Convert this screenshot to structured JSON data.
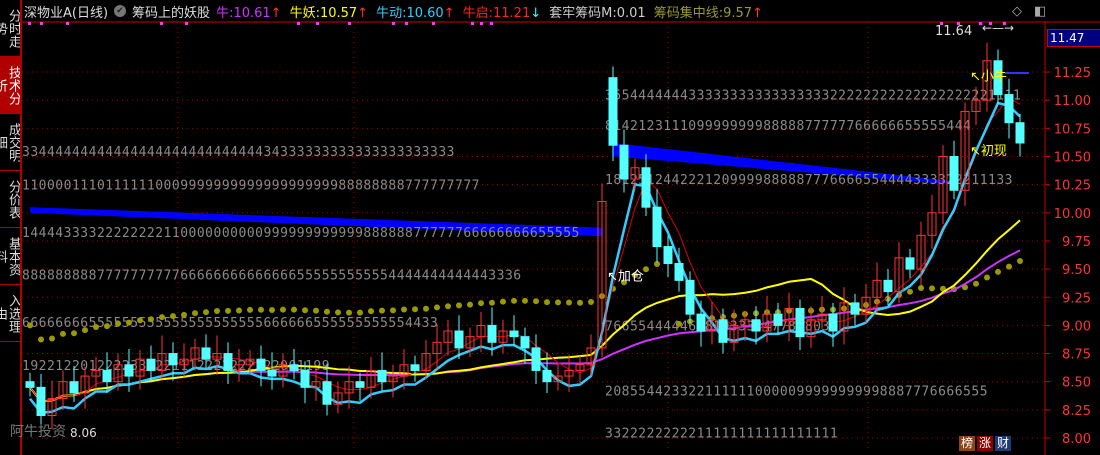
{
  "sidebar": {
    "tabs": [
      {
        "label": "分时走势",
        "active": false
      },
      {
        "label": "技术分析",
        "active": true
      },
      {
        "label": "成交明细",
        "active": false
      },
      {
        "label": "分价表",
        "active": false
      },
      {
        "label": "基本资料",
        "active": false
      },
      {
        "label": "入选理由",
        "active": false
      }
    ]
  },
  "header": {
    "title": "深物业A(日线)",
    "indicator": "筹码上的妖股",
    "items": [
      {
        "label": "牛: ",
        "value": "10.61",
        "arrow": "↑",
        "color": "#cc33ff",
        "arrow_color": "#ff3333"
      },
      {
        "label": "牛妖: ",
        "value": "10.57",
        "arrow": "↑",
        "color": "#ffff00",
        "arrow_color": "#ff3333"
      },
      {
        "label": "牛动: ",
        "value": "10.60",
        "arrow": "↑",
        "color": "#33ccff",
        "arrow_color": "#ff3333"
      },
      {
        "label": "牛启: ",
        "value": "11.21",
        "arrow": "↓",
        "color": "#ff2222",
        "arrow_color": "#33ffff"
      },
      {
        "label": "套牢筹码M: ",
        "value": "0.01",
        "arrow": "",
        "color": "#cccccc",
        "arrow_color": ""
      },
      {
        "label": "筹码集中线: ",
        "value": "9.57",
        "arrow": "↑",
        "color": "#999933",
        "arrow_color": "#ff3333"
      }
    ]
  },
  "top_icons": [
    "diamond-icon",
    "window-toggle-icon"
  ],
  "current_price": "11.47",
  "badges": [
    {
      "label": "榜",
      "color": "#8b4513"
    },
    {
      "label": "涨",
      "color": "#8b0000"
    },
    {
      "label": "财",
      "color": "#1e3a6e"
    }
  ],
  "watermark": "阿牛投资",
  "chart_data": {
    "type": "candlestick",
    "ylim": [
      7.95,
      11.55
    ],
    "y_ticks": [
      "8.00",
      "8.25",
      "8.50",
      "8.75",
      "9.00",
      "9.25",
      "9.50",
      "9.75",
      "10.00",
      "10.25",
      "10.50",
      "10.75",
      "11.00",
      "11.25"
    ],
    "colors": {
      "up": "#ff3333",
      "down": "#55ffff",
      "ma_fast": "#33ccff",
      "ma_mid": "#ffff00",
      "ma_slow": "#cc33ff",
      "chip_line": "#999900",
      "chip_band": "#0000ff",
      "grid": "#aa0000"
    },
    "open": [
      8.5,
      8.45,
      8.2,
      8.35,
      8.5,
      8.4,
      8.55,
      8.6,
      8.5,
      8.65,
      8.55,
      8.7,
      8.6,
      8.75,
      8.65,
      8.7,
      8.8,
      8.7,
      8.75,
      8.6,
      8.65,
      8.7,
      8.6,
      8.55,
      8.65,
      8.6,
      8.45,
      8.5,
      8.3,
      8.4,
      8.5,
      8.45,
      8.6,
      8.5,
      8.55,
      8.65,
      8.6,
      8.75,
      8.85,
      8.95,
      8.8,
      8.9,
      9.0,
      8.85,
      8.95,
      8.9,
      8.8,
      8.6,
      8.5,
      8.55,
      8.6,
      8.65,
      8.8,
      11.2,
      10.6,
      10.3,
      10.4,
      10.05,
      9.7,
      9.55,
      9.4,
      9.1,
      8.95,
      9.05,
      8.85,
      9.0,
      9.05,
      8.95,
      9.1,
      9.0,
      9.15,
      8.9,
      9.05,
      9.1,
      8.95,
      9.2,
      9.1,
      9.25,
      9.4,
      9.3,
      9.6,
      9.5,
      9.8,
      10.0,
      10.5,
      10.2,
      10.9,
      11.0,
      11.35,
      11.05,
      10.8
    ],
    "close": [
      8.45,
      8.2,
      8.35,
      8.5,
      8.4,
      8.55,
      8.6,
      8.5,
      8.65,
      8.55,
      8.7,
      8.6,
      8.75,
      8.65,
      8.7,
      8.8,
      8.7,
      8.75,
      8.6,
      8.65,
      8.7,
      8.6,
      8.55,
      8.65,
      8.6,
      8.45,
      8.5,
      8.3,
      8.4,
      8.5,
      8.45,
      8.6,
      8.5,
      8.55,
      8.65,
      8.6,
      8.75,
      8.85,
      8.95,
      8.8,
      8.9,
      9.0,
      8.85,
      8.95,
      8.9,
      8.8,
      8.6,
      8.5,
      8.55,
      8.6,
      8.65,
      8.8,
      10.1,
      10.6,
      10.3,
      10.4,
      10.05,
      9.7,
      9.55,
      9.4,
      9.1,
      8.95,
      9.05,
      8.85,
      9.0,
      9.05,
      8.95,
      9.1,
      9.0,
      9.15,
      8.9,
      9.05,
      9.1,
      8.95,
      9.2,
      9.1,
      9.25,
      9.4,
      9.3,
      9.6,
      9.5,
      9.8,
      10.0,
      10.5,
      10.2,
      10.9,
      11.0,
      11.35,
      11.05,
      10.8,
      10.62
    ],
    "low_label": "8.06",
    "high_label": "11.64",
    "annotations": [
      {
        "text": "↖加仓",
        "index": 53,
        "price": 9.4,
        "color": "#ffffff"
      },
      {
        "text": "↖小牛",
        "index": 86,
        "price": 11.05,
        "color": "#ffff00"
      },
      {
        "text": "↖初现",
        "index": 86,
        "price": 10.62,
        "color": "#ffff00"
      }
    ],
    "chip_rows": [
      {
        "price": 10.55,
        "start": 0,
        "text": "3344444444444444444444444444434333333333333333333333"
      },
      {
        "price": 10.25,
        "start": 0,
        "text": "1100001110111111000999999999999999999988888888777777777"
      },
      {
        "price": 9.83,
        "start": 0,
        "text": "1444433332222222211000000000099999999999988888877777766666666655555"
      },
      {
        "price": 9.45,
        "start": 0,
        "text": "888888888777777777766666666666666555555555554444444444443336"
      },
      {
        "price": 9.03,
        "start": 0,
        "text": "66666666555555555555555555555666666555555555554433"
      },
      {
        "price": 8.65,
        "start": 0,
        "text": "1922122012222332221112222222222001199"
      },
      {
        "price": 11.05,
        "start": 53,
        "text": "35544444443333333333333333322222222222222222221111"
      },
      {
        "price": 10.78,
        "start": 53,
        "text": "81421231110999999998888877777766666655555444"
      },
      {
        "price": 10.3,
        "start": 53,
        "text": "1812512442221209999888887776666554444333322211133"
      },
      {
        "price": 9.0,
        "start": 53,
        "text": "7665544444678103334477888032"
      },
      {
        "price": 8.42,
        "start": 53,
        "text": "2085544233221111110000099999999998887776666555"
      },
      {
        "price": 8.05,
        "start": 53,
        "text": "3322222222211111111111111111"
      }
    ]
  }
}
